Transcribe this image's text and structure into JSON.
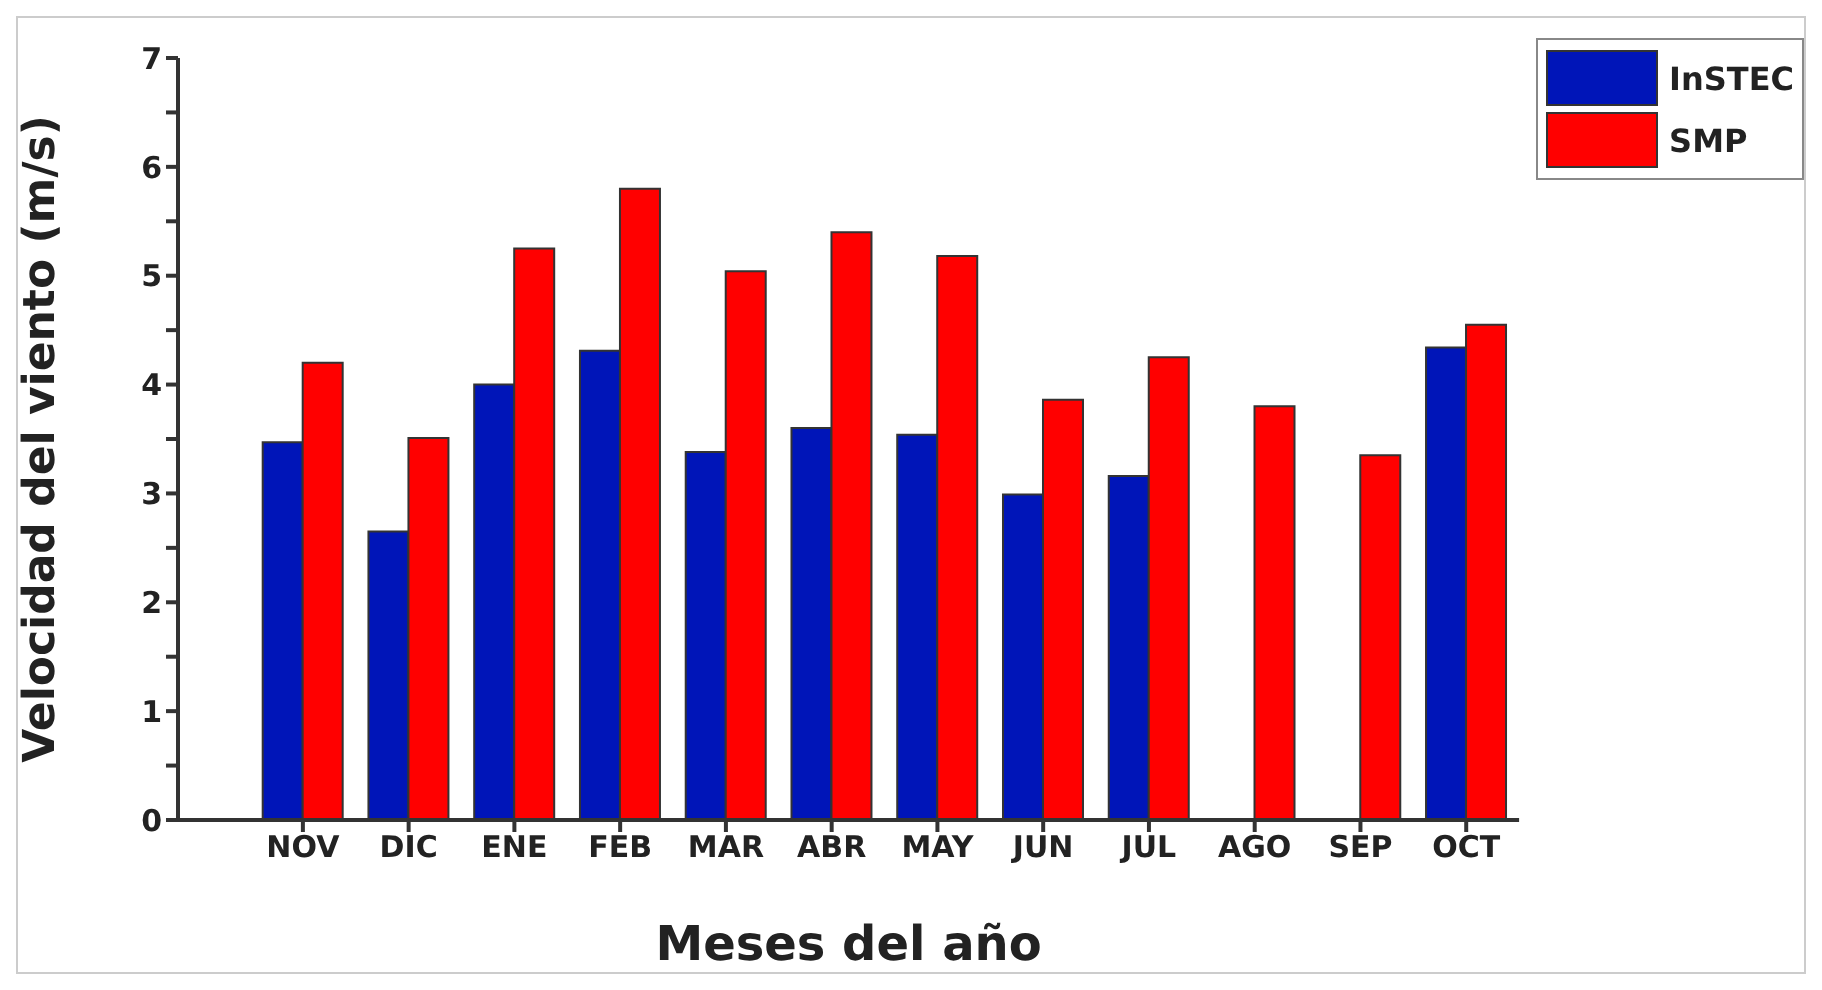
{
  "chart_data": {
    "type": "bar",
    "xlabel": "Meses del año",
    "ylabel": "Velocidad del viento (m/s)",
    "categories": [
      "NOV",
      "DIC",
      "ENE",
      "FEB",
      "MAR",
      "ABR",
      "MAY",
      "JUN",
      "JUL",
      "AGO",
      "SEP",
      "OCT"
    ],
    "series": [
      {
        "name": "InSTEC",
        "color": "#0015b8",
        "values": [
          3.47,
          2.65,
          4.0,
          4.31,
          3.38,
          3.6,
          3.54,
          2.99,
          3.16,
          null,
          null,
          4.34
        ]
      },
      {
        "name": "SMP",
        "color": "#ff0000",
        "values": [
          4.2,
          3.51,
          5.25,
          5.8,
          5.04,
          5.4,
          5.18,
          3.86,
          4.25,
          3.8,
          3.35,
          4.55
        ]
      }
    ],
    "ylim": [
      0,
      7
    ],
    "yticks": [
      0,
      {
        "value": 0.5,
        "label": null
      },
      1,
      {
        "value": 1.5,
        "label": null
      },
      2,
      {
        "value": 2.5,
        "label": null
      },
      3,
      {
        "value": 3.5,
        "label": null
      },
      4,
      {
        "value": 4.5,
        "label": null
      },
      5,
      {
        "value": 5.5,
        "label": null
      },
      6,
      {
        "value": 6.5,
        "label": null
      },
      7
    ],
    "grid": false,
    "legend": "top right"
  }
}
